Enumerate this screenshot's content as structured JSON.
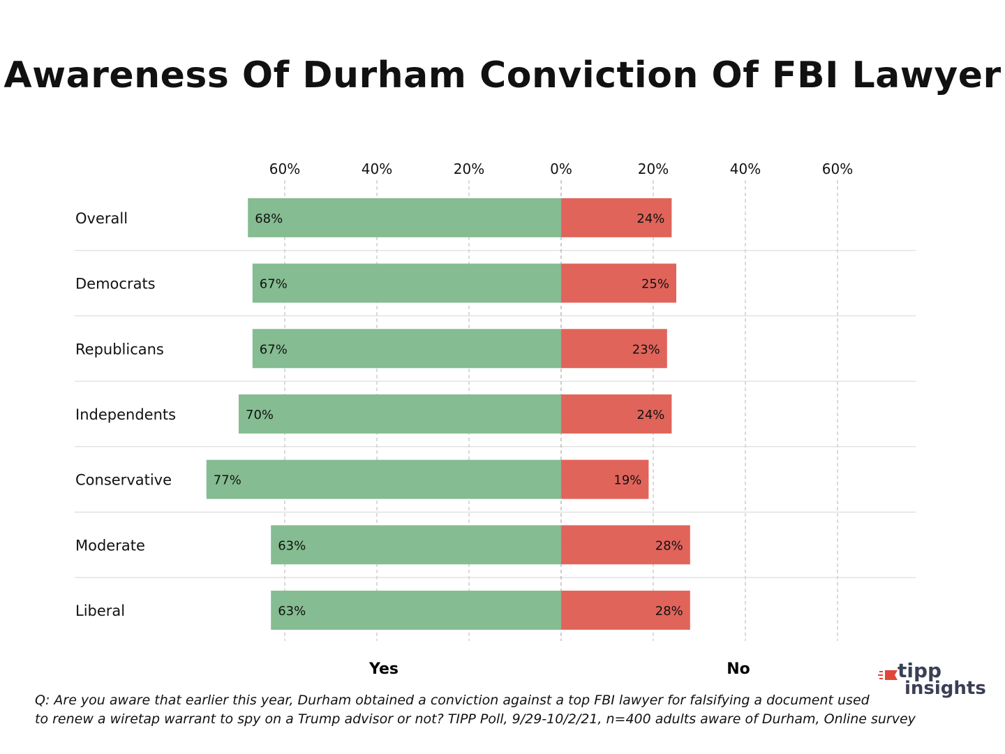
{
  "chart_data": {
    "type": "bar",
    "orientation": "horizontal-diverging",
    "title": "Awareness Of Durham Conviction Of FBI Lawyer",
    "categories": [
      "Overall",
      "Democrats",
      "Republicans",
      "Independents",
      "Conservative",
      "Moderate",
      "Liberal"
    ],
    "series": [
      {
        "name": "Yes",
        "values": [
          68,
          67,
          67,
          70,
          77,
          63,
          63
        ],
        "labels": [
          "68%",
          "67%",
          "67%",
          "70%",
          "77%",
          "63%",
          "63%"
        ],
        "color": "#85bc91"
      },
      {
        "name": "No",
        "values": [
          24,
          25,
          23,
          24,
          19,
          28,
          28
        ],
        "labels": [
          "24%",
          "25%",
          "23%",
          "24%",
          "19%",
          "28%",
          "28%"
        ],
        "color": "#e0645a"
      }
    ],
    "xaxis_ticks": [
      {
        "value": -60,
        "label": "60%"
      },
      {
        "value": -40,
        "label": "40%"
      },
      {
        "value": -20,
        "label": "20%"
      },
      {
        "value": 0,
        "label": "0%"
      },
      {
        "value": 20,
        "label": "20%"
      },
      {
        "value": 40,
        "label": "40%"
      },
      {
        "value": 60,
        "label": "60%"
      }
    ],
    "xlim": [
      -77,
      77
    ],
    "grid": true,
    "side_labels": {
      "left": "Yes",
      "right": "No"
    }
  },
  "footnote": {
    "line1": "Q: Are you aware that earlier this year, Durham obtained a conviction against a top FBI lawyer for falsifying a document used",
    "line2": "to renew a wiretap warrant to spy on a Trump advisor or not? TIPP Poll, 9/29-10/2/21, n=400 adults aware of Durham, Online survey"
  },
  "logo": {
    "line1": "tipp",
    "line2": "insights",
    "icon": "tipp-flag-icon",
    "accent": "#e0463a",
    "text_color": "#3b3f55"
  }
}
